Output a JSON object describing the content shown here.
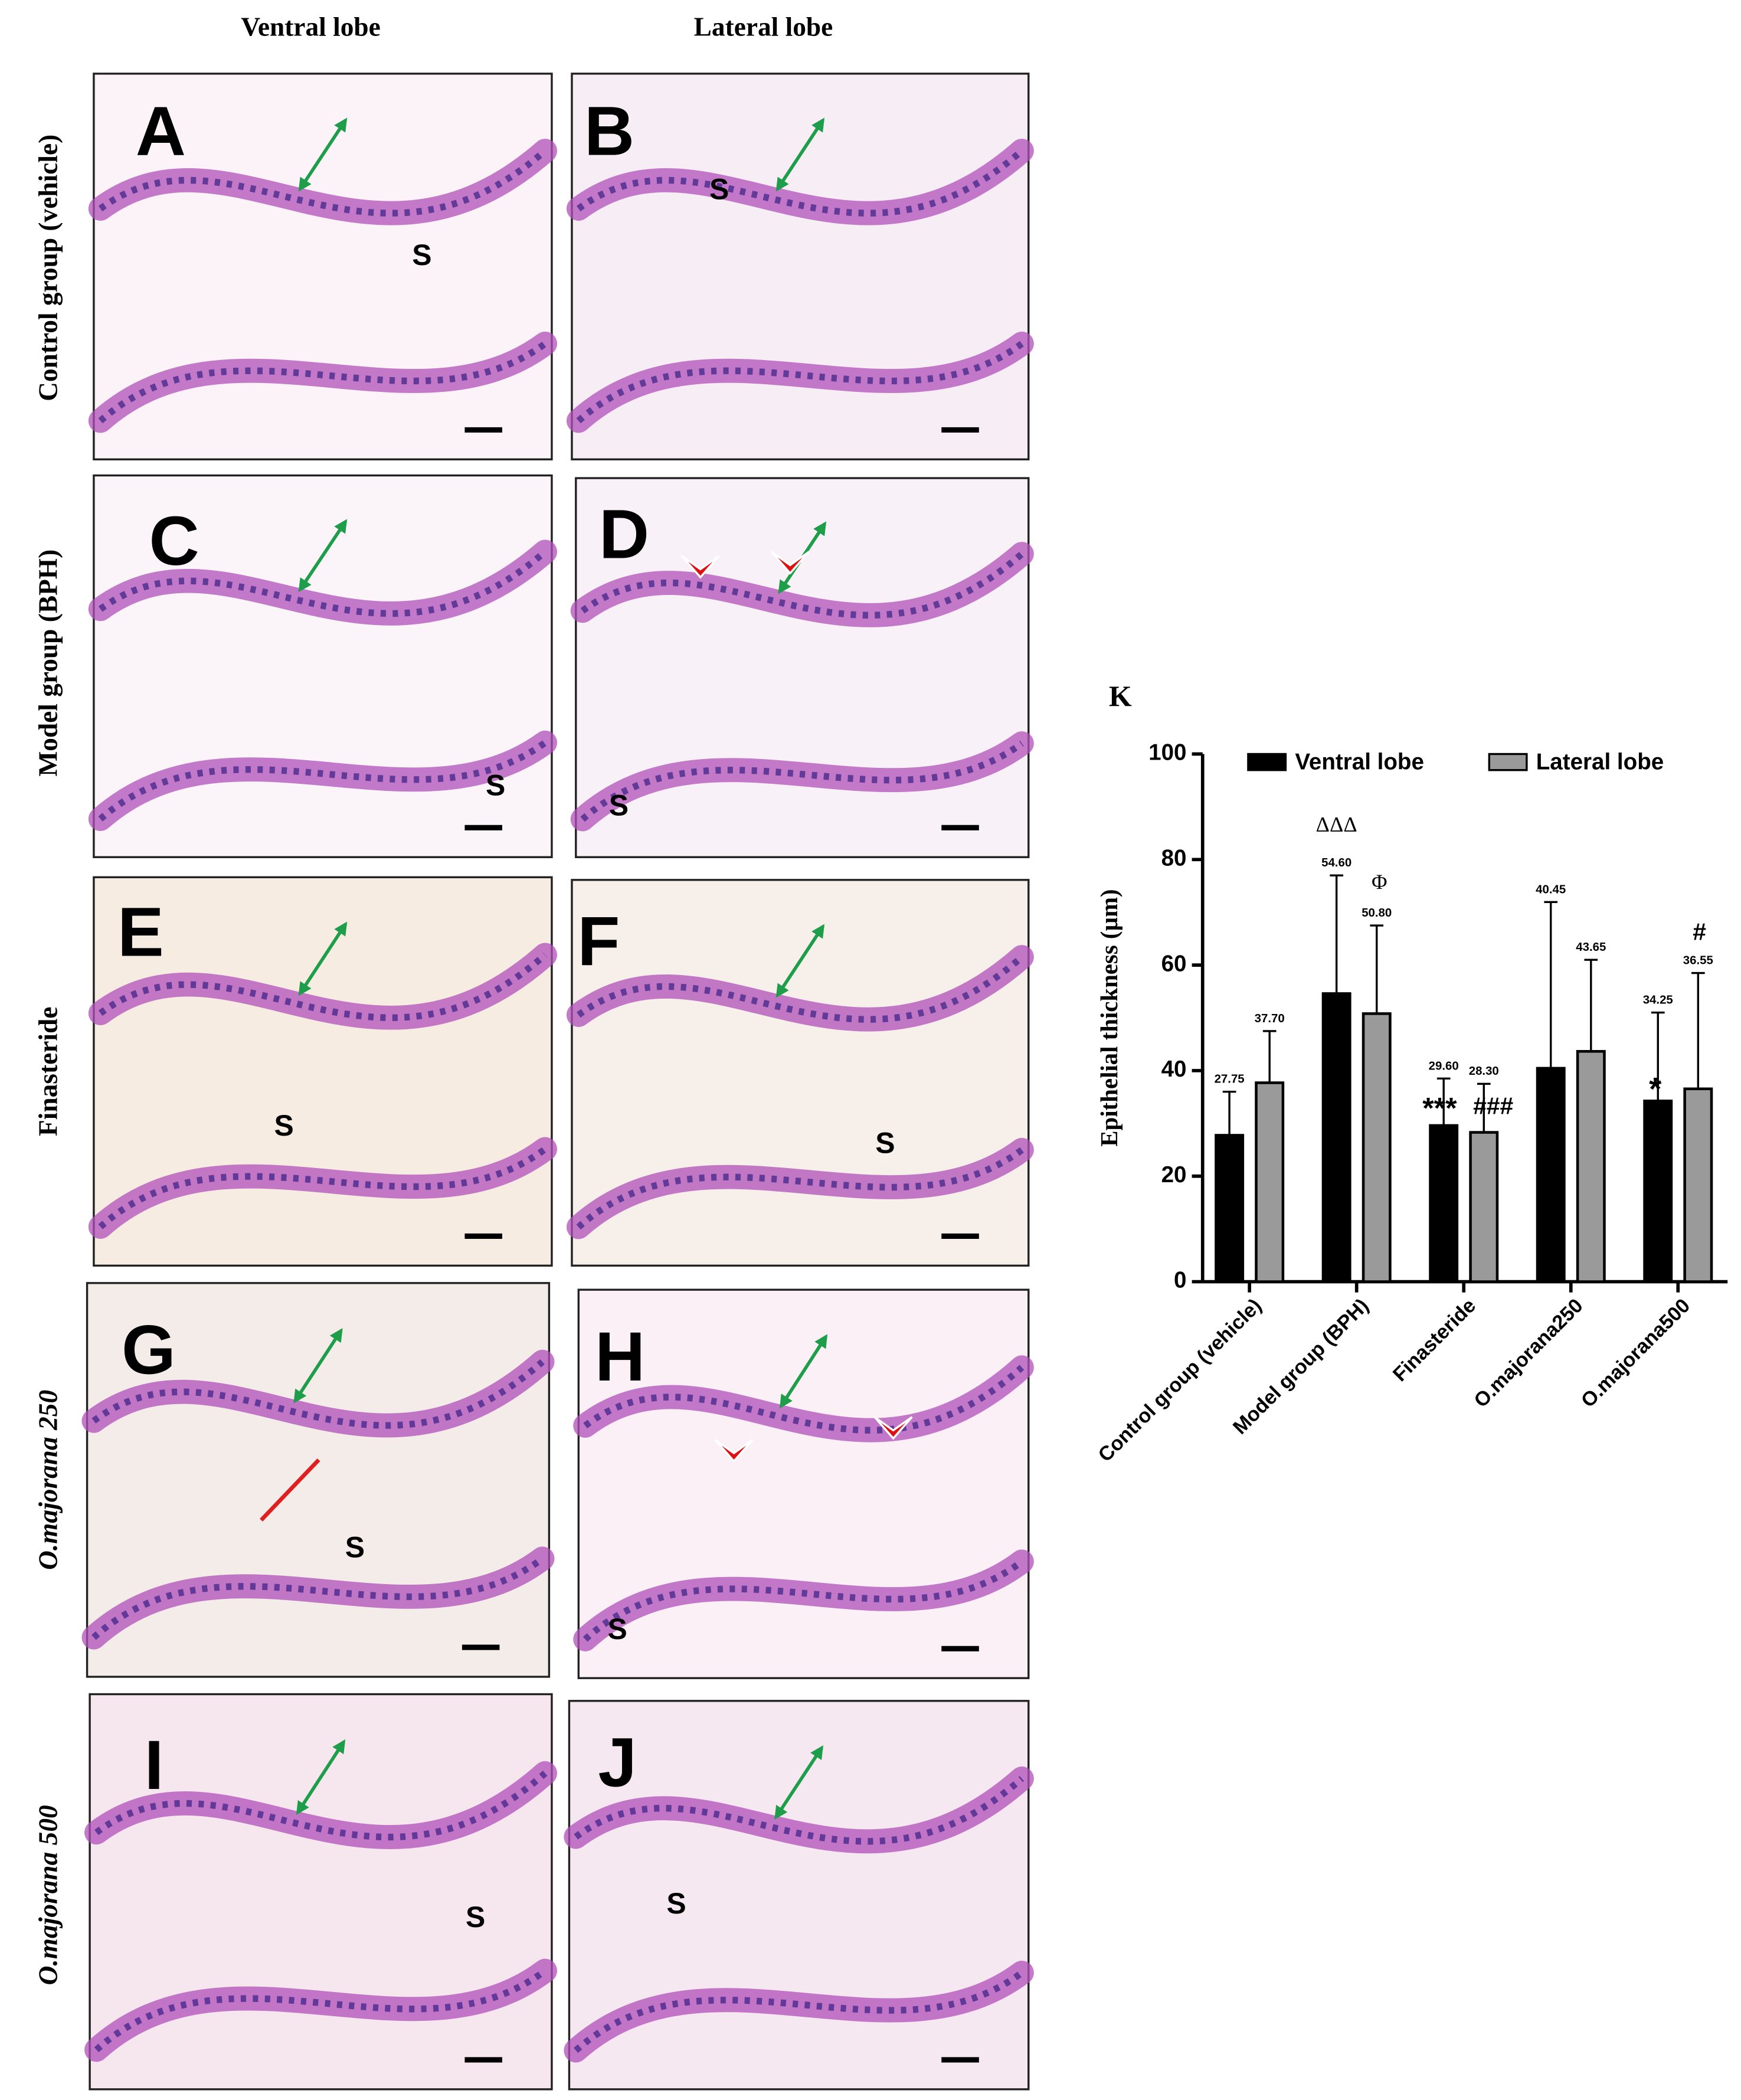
{
  "header": {
    "columns": [
      "Ventral lobe",
      "Lateral lobe"
    ]
  },
  "rows": [
    "Control group (vehicle)",
    "Model group (BPH)",
    "Finasteride",
    "O.majorana 250",
    "O.majorana 500"
  ],
  "panels": [
    {
      "letter": "A",
      "label": "S"
    },
    {
      "letter": "B",
      "label": "S"
    },
    {
      "letter": "C",
      "label": "S"
    },
    {
      "letter": "D",
      "label": "S"
    },
    {
      "letter": "E",
      "label": "S"
    },
    {
      "letter": "F",
      "label": "S"
    },
    {
      "letter": "G",
      "label": "S"
    },
    {
      "letter": "H",
      "label": "S"
    },
    {
      "letter": "I",
      "label": "S"
    },
    {
      "letter": "J",
      "label": "S"
    }
  ],
  "chart_data": {
    "type": "bar",
    "title": "K",
    "y_label": "Epithelial thickness (µm)",
    "categories": [
      "Control group (vehicle)",
      "Model group (BPH)",
      "Finasteride",
      "O.majorana250",
      "O.majorana500"
    ],
    "series": [
      {
        "name": "Ventral lobe",
        "color": "#000000",
        "values": [
          27.75,
          54.6,
          29.6,
          40.45,
          34.25
        ],
        "value_labels": [
          "27.75",
          "54.60",
          "29.60",
          "40.45",
          "34.25"
        ],
        "errors": [
          8.25,
          22.4,
          8.9,
          31.5,
          16.75
        ]
      },
      {
        "name": "Lateral lobe",
        "color": "#9a9a9a",
        "values": [
          37.7,
          50.8,
          28.3,
          43.65,
          36.55
        ],
        "value_labels": [
          "37.70",
          "50.80",
          "28.30",
          "43.65",
          "36.55"
        ],
        "errors": [
          9.8,
          16.7,
          9.2,
          17.35,
          21.95
        ]
      }
    ],
    "ylim": [
      0,
      100
    ],
    "yticks": [
      0,
      20,
      40,
      60,
      80,
      100
    ],
    "annotations": [
      "ΔΔΔ",
      "Φ",
      "***",
      "###",
      "*",
      "#"
    ]
  }
}
